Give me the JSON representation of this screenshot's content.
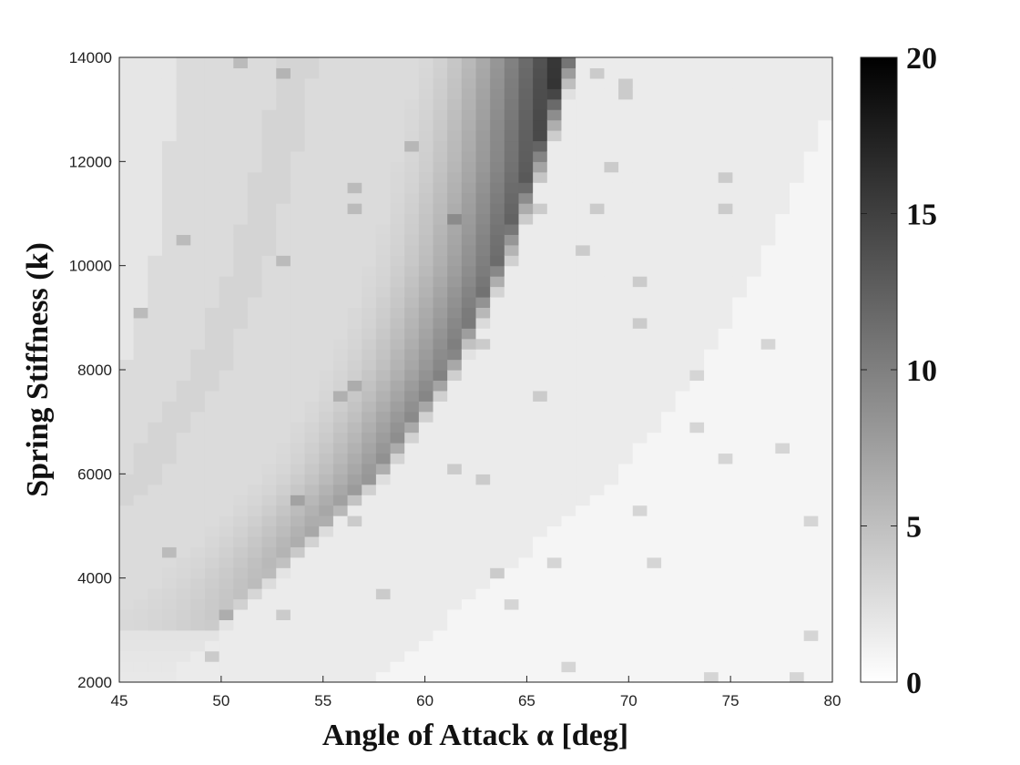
{
  "chart_data": {
    "type": "heatmap",
    "title": "",
    "xlabel": "Angle of Attack α [deg]",
    "ylabel": "Spring Stiffness (k)",
    "xlim": [
      45,
      80
    ],
    "ylim": [
      2000,
      14000
    ],
    "x_ticks": [
      "45",
      "50",
      "55",
      "60",
      "65",
      "70",
      "75",
      "80"
    ],
    "y_ticks": [
      "2000",
      "4000",
      "6000",
      "8000",
      "10000",
      "12000",
      "14000"
    ],
    "colorbar": {
      "range": [
        0,
        20
      ],
      "ticks": [
        "0",
        "5",
        "10",
        "15",
        "20"
      ],
      "colormap": "gray-reversed"
    },
    "grid": false,
    "x_step_deg": 0.7,
    "y_step": 200,
    "dark_ridge": {
      "description_points_k": [
        4000,
        6000,
        8000,
        10000,
        12000,
        14000
      ],
      "center_alpha_deg": [
        52,
        57.5,
        61,
        63.5,
        65.3,
        66.8
      ],
      "peak_value": [
        5.5,
        8.5,
        10,
        11.5,
        13.5,
        17
      ]
    }
  }
}
